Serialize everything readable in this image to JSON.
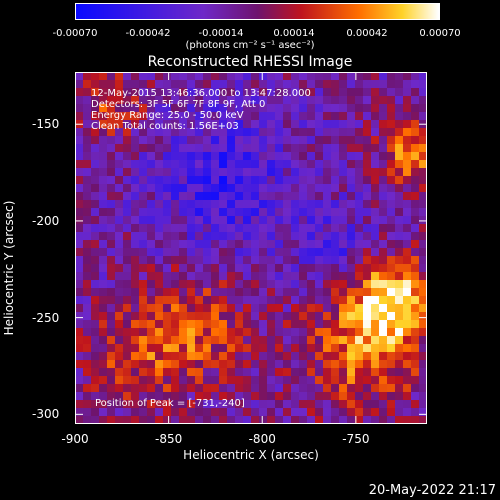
{
  "colorbar": {
    "ticks": [
      "-0.00070",
      "-0.00042",
      "-0.00014",
      "0.00014",
      "0.00042",
      "0.00070"
    ],
    "units": "(photons cm⁻² s⁻¹ asec⁻²)",
    "range": [
      -0.0007,
      0.0007
    ]
  },
  "chart_data": {
    "type": "heatmap",
    "title": "Reconstructed RHESSI Image",
    "xlabel": "Heliocentric X (arcsec)",
    "ylabel": "Heliocentric Y (arcsec)",
    "xlim": [
      -900,
      -712
    ],
    "ylim": [
      -305,
      -123
    ],
    "xticks": [
      "-900",
      "-850",
      "-800",
      "-750"
    ],
    "yticks": [
      "-150",
      "-200",
      "-250",
      "-300"
    ],
    "annotations": [
      "12-May-2015 13:46:36.000 to 13:47:28.000",
      "Detectors: 3F 5F 6F 7F 8F 9F, Att 0",
      "Energy Range: 25.0 - 50.0 keV",
      "Clean     Total counts: 1.56E+03"
    ],
    "peak_label": "Position of Peak = [-731,-240]",
    "peak": [
      -731,
      -240
    ]
  },
  "footer": "20-May-2022 21:17"
}
